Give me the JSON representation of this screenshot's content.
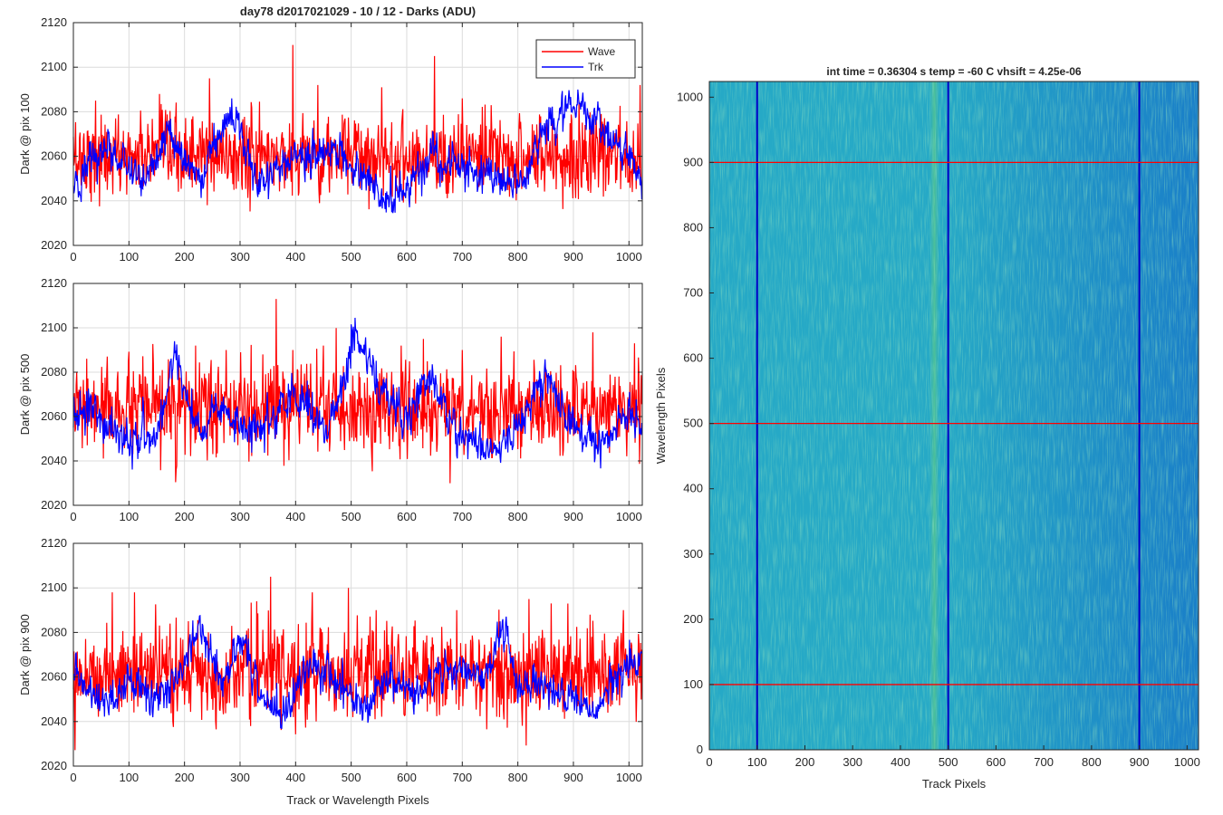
{
  "figure": {
    "title": "day78 d2017021029 - 10 / 12 - Darks (ADU)",
    "xlabel": "Track or Wavelength Pixels",
    "colors": {
      "wave": "#ff0000",
      "trk": "#0000ff",
      "grid": "#dcdcdc",
      "axis": "#262626"
    }
  },
  "chart_data": [
    {
      "type": "line",
      "ylabel": "Dark @ pix 100",
      "xlim": [
        0,
        1024
      ],
      "ylim": [
        2020,
        2120
      ],
      "xticks": [
        0,
        100,
        200,
        300,
        400,
        500,
        600,
        700,
        800,
        900,
        1000
      ],
      "yticks": [
        2020,
        2040,
        2060,
        2080,
        2100,
        2120
      ],
      "grid": true,
      "legend": {
        "placement": "top-right",
        "entries": [
          "Wave",
          "Trk"
        ]
      },
      "series": [
        {
          "name": "Wave",
          "color": "#ff0000",
          "mean": 2060,
          "noise": 9,
          "spikes": [
            [
              40,
              2085
            ],
            [
              155,
              2088
            ],
            [
              245,
              2095
            ],
            [
              395,
              2110
            ],
            [
              440,
              2092
            ],
            [
              555,
              2091
            ],
            [
              650,
              2105
            ],
            [
              700,
              2086
            ],
            [
              910,
              2085
            ],
            [
              1020,
              2092
            ]
          ]
        },
        {
          "name": "Trk",
          "color": "#0000ff",
          "mean": 2056,
          "noise": 6,
          "trend": [
            [
              0,
              2045
            ],
            [
              60,
              2065
            ],
            [
              120,
              2050
            ],
            [
              170,
              2068
            ],
            [
              230,
              2050
            ],
            [
              290,
              2082
            ],
            [
              330,
              2048
            ],
            [
              380,
              2058
            ],
            [
              450,
              2062
            ],
            [
              510,
              2055
            ],
            [
              560,
              2040
            ],
            [
              600,
              2045
            ],
            [
              650,
              2060
            ],
            [
              720,
              2052
            ],
            [
              760,
              2050
            ],
            [
              800,
              2047
            ],
            [
              850,
              2072
            ],
            [
              910,
              2085
            ],
            [
              950,
              2070
            ],
            [
              1000,
              2060
            ],
            [
              1024,
              2045
            ]
          ]
        }
      ]
    },
    {
      "type": "line",
      "ylabel": "Dark @ pix 500",
      "xlim": [
        0,
        1024
      ],
      "ylim": [
        2020,
        2120
      ],
      "xticks": [
        0,
        100,
        200,
        300,
        400,
        500,
        600,
        700,
        800,
        900,
        1000
      ],
      "yticks": [
        2020,
        2040,
        2060,
        2080,
        2100,
        2120
      ],
      "grid": true,
      "series": [
        {
          "name": "Wave",
          "color": "#ff0000",
          "mean": 2063,
          "noise": 10,
          "spikes": [
            [
              220,
              2092
            ],
            [
              275,
              2090
            ],
            [
              365,
              2113
            ],
            [
              395,
              2090
            ],
            [
              450,
              2092
            ],
            [
              590,
              2092
            ],
            [
              630,
              2095
            ],
            [
              700,
              2090
            ],
            [
              770,
              2096
            ],
            [
              850,
              2082
            ],
            [
              1010,
              2093
            ]
          ]
        },
        {
          "name": "Trk",
          "color": "#0000ff",
          "mean": 2056,
          "noise": 6,
          "trend": [
            [
              0,
              2062
            ],
            [
              40,
              2060
            ],
            [
              100,
              2048
            ],
            [
              150,
              2052
            ],
            [
              185,
              2088
            ],
            [
              220,
              2055
            ],
            [
              270,
              2062
            ],
            [
              320,
              2052
            ],
            [
              400,
              2068
            ],
            [
              460,
              2055
            ],
            [
              510,
              2098
            ],
            [
              560,
              2068
            ],
            [
              600,
              2058
            ],
            [
              640,
              2078
            ],
            [
              700,
              2050
            ],
            [
              760,
              2045
            ],
            [
              800,
              2052
            ],
            [
              850,
              2080
            ],
            [
              880,
              2058
            ],
            [
              950,
              2048
            ],
            [
              1000,
              2060
            ],
            [
              1024,
              2058
            ]
          ]
        }
      ]
    },
    {
      "type": "line",
      "ylabel": "Dark @ pix 900",
      "xlim": [
        0,
        1024
      ],
      "ylim": [
        2020,
        2120
      ],
      "xticks": [
        0,
        100,
        200,
        300,
        400,
        500,
        600,
        700,
        800,
        900,
        1000
      ],
      "yticks": [
        2020,
        2040,
        2060,
        2080,
        2100,
        2120
      ],
      "grid": true,
      "series": [
        {
          "name": "Wave",
          "color": "#ff0000",
          "mean": 2062,
          "noise": 10,
          "spikes": [
            [
              70,
              2098
            ],
            [
              110,
              2098
            ],
            [
              330,
              2094
            ],
            [
              355,
              2105
            ],
            [
              430,
              2098
            ],
            [
              495,
              2100
            ],
            [
              545,
              2090
            ],
            [
              690,
              2090
            ],
            [
              820,
              2095
            ],
            [
              860,
              2093
            ],
            [
              930,
              2088
            ],
            [
              990,
              2090
            ]
          ]
        },
        {
          "name": "Trk",
          "color": "#0000ff",
          "mean": 2057,
          "noise": 6,
          "trend": [
            [
              0,
              2060
            ],
            [
              60,
              2048
            ],
            [
              110,
              2060
            ],
            [
              150,
              2048
            ],
            [
              200,
              2068
            ],
            [
              230,
              2080
            ],
            [
              270,
              2058
            ],
            [
              300,
              2078
            ],
            [
              340,
              2052
            ],
            [
              380,
              2042
            ],
            [
              420,
              2068
            ],
            [
              470,
              2058
            ],
            [
              520,
              2045
            ],
            [
              570,
              2060
            ],
            [
              620,
              2052
            ],
            [
              680,
              2064
            ],
            [
              740,
              2060
            ],
            [
              770,
              2085
            ],
            [
              800,
              2058
            ],
            [
              860,
              2055
            ],
            [
              900,
              2052
            ],
            [
              940,
              2045
            ],
            [
              990,
              2062
            ],
            [
              1024,
              2070
            ]
          ]
        }
      ]
    },
    {
      "type": "heatmap",
      "title": "int time = 0.36304 s   temp = -60 C   vhsift = 4.25e-06",
      "xlabel": "Track Pixels",
      "ylabel": "Wavelength Pixels",
      "xlim": [
        0,
        1024
      ],
      "ylim": [
        0,
        1024
      ],
      "xticks": [
        0,
        100,
        200,
        300,
        400,
        500,
        600,
        700,
        800,
        900,
        1000
      ],
      "yticks": [
        0,
        100,
        200,
        300,
        400,
        500,
        600,
        700,
        800,
        900,
        1000
      ],
      "colormap": [
        "#1a7fc8",
        "#26a9c6",
        "#4bbf9a"
      ],
      "vertical_lines": {
        "color": "#0000c8",
        "x": [
          100,
          500,
          900
        ]
      },
      "horizontal_lines": {
        "color": "#ff0000",
        "y": [
          100,
          500,
          900
        ]
      }
    }
  ]
}
